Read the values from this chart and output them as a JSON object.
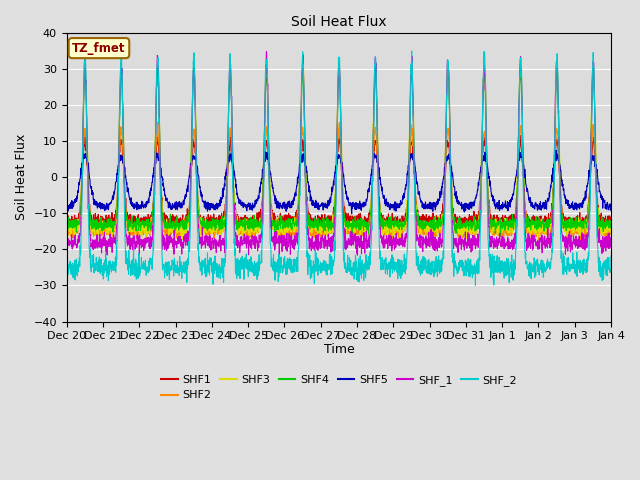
{
  "title": "Soil Heat Flux",
  "ylabel": "Soil Heat Flux",
  "xlabel": "Time",
  "annotation": "TZ_fmet",
  "ylim": [
    -40,
    40
  ],
  "series_names": [
    "SHF1",
    "SHF2",
    "SHF3",
    "SHF4",
    "SHF5",
    "SHF_1",
    "SHF_2"
  ],
  "series_colors": [
    "#cc0000",
    "#ff8800",
    "#dddd00",
    "#00cc00",
    "#0000bb",
    "#cc00cc",
    "#00cccc"
  ],
  "background_color": "#e0e0e0",
  "plot_bg_color": "#dcdcdc",
  "grid_color": "#ffffff",
  "tick_labels": [
    "Dec 20",
    "Dec 21",
    "Dec 22",
    "Dec 23",
    "Dec 24",
    "Dec 25",
    "Dec 26",
    "Dec 27",
    "Dec 28",
    "Dec 29",
    "Dec 30",
    "Dec 31",
    "Jan 1",
    "Jan 2",
    "Jan 3",
    "Jan 4"
  ],
  "n_days": 15,
  "pts_per_day": 144
}
